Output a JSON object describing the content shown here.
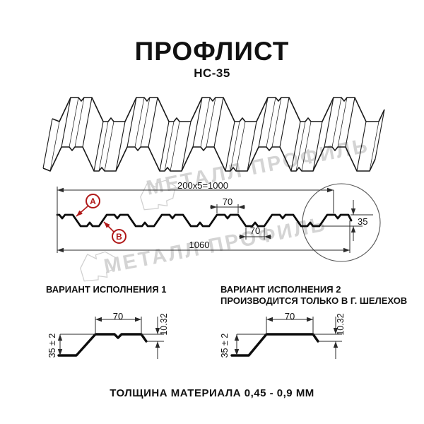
{
  "title": "ПРОФЛИСТ",
  "subtitle": "НС-35",
  "watermark": {
    "text1": "МЕТАЛЛ ПРОФИЛЬ",
    "text2": "МЕТАЛЛ ПРОФИЛЬ",
    "color": "#d4d4d4"
  },
  "cross_section": {
    "dim_total_top": "200x5=1000",
    "dim_crest_width": "70",
    "dim_valley_width": "70",
    "dim_overall_width": "1060",
    "dim_height": "35",
    "marker_a": "А",
    "marker_b": "В",
    "marker_color": "#b01818"
  },
  "variant1": {
    "heading": "ВАРИАНТ ИСПОЛНЕНИЯ 1",
    "dim_top": "70",
    "dim_height": "35 ± 2",
    "dim_lip": "10.32"
  },
  "variant2": {
    "heading_line1": "ВАРИАНТ ИСПОЛНЕНИЯ 2",
    "heading_line2": "ПРОИЗВОДИТСЯ ТОЛЬКО В Г. ШЕЛЕХОВ",
    "dim_top": "70",
    "dim_height": "35 ± 2",
    "dim_lip": "10.32"
  },
  "footer": "ТОЛЩИНА МАТЕРИАЛА 0,45 - 0,9 ММ"
}
